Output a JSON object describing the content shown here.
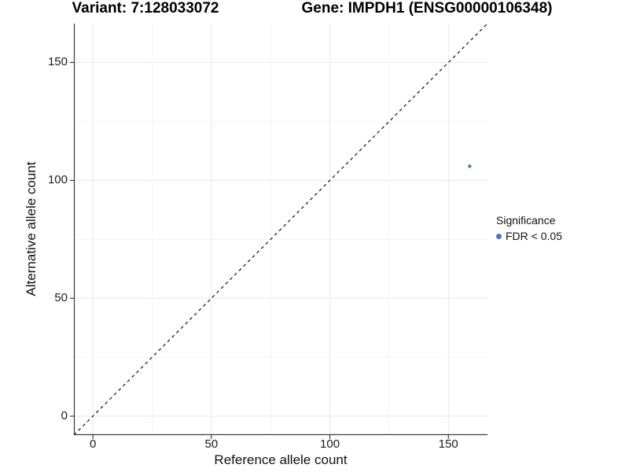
{
  "figure": {
    "title_left": "Variant: 7:128033072",
    "title_right": "Gene: IMPDH1 (ENSG00000106348)"
  },
  "axes": {
    "x": {
      "label": "Reference allele count",
      "ticks": [
        0,
        50,
        100,
        150
      ],
      "minor_ticks": [
        25,
        75,
        125
      ],
      "range": [
        -8,
        166.5
      ]
    },
    "y": {
      "label": "Alternative allele count",
      "ticks": [
        0,
        50,
        100,
        150
      ],
      "minor_ticks": [
        25,
        75,
        125
      ],
      "range": [
        -8,
        166.5
      ]
    }
  },
  "legend": {
    "title": "Significance",
    "items": [
      {
        "label": "FDR < 0.05",
        "color": "#4b78af"
      }
    ]
  },
  "chart_data": {
    "type": "scatter",
    "title_left": "Variant: 7:128033072",
    "title_right": "Gene: IMPDH1 (ENSG00000106348)",
    "xlabel": "Reference allele count",
    "ylabel": "Alternative allele count",
    "xlim": [
      -8,
      166.5
    ],
    "ylim": [
      -8,
      166.5
    ],
    "x_ticks": [
      0,
      50,
      100,
      150
    ],
    "y_ticks": [
      0,
      50,
      100,
      150
    ],
    "grid": true,
    "legend_position": "right",
    "series": [
      {
        "name": "FDR < 0.05",
        "color": "#4b78af",
        "points": [
          {
            "x": 159,
            "y": 106
          }
        ]
      }
    ],
    "reference_line": {
      "type": "identity",
      "slope": 1,
      "intercept": 0,
      "style": "dashed",
      "color": "#111111"
    }
  },
  "colors": {
    "point": "#4b78af",
    "axis_line": "#3a3a3a",
    "grid_major": "#e8e8e8",
    "grid_minor": "#f4f4f4",
    "reference_line": "#111111",
    "background": "#ffffff"
  }
}
